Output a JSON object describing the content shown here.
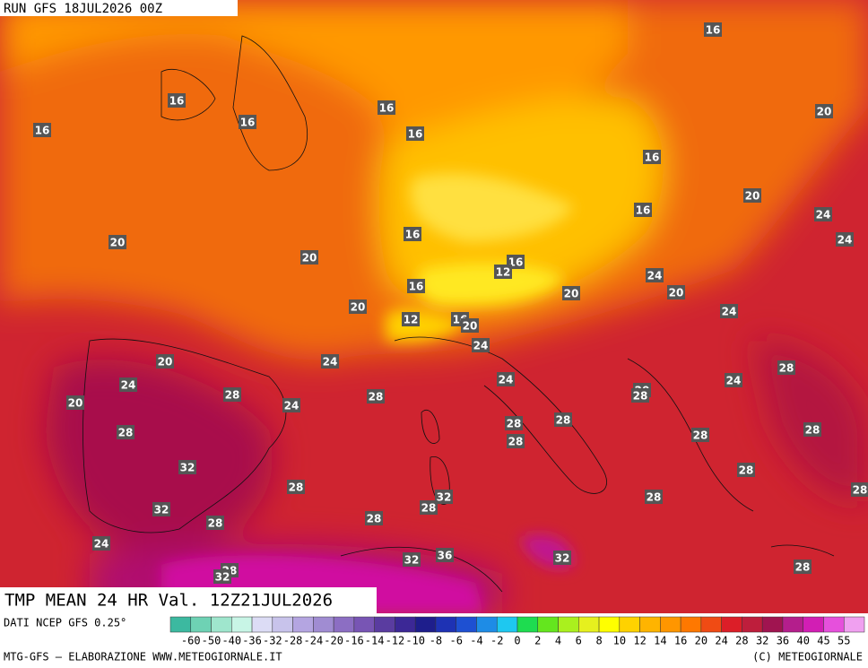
{
  "header": {
    "run": "RUN GFS 18JUL2026 00Z"
  },
  "footer": {
    "title": "TMP MEAN 24 HR Val. 12Z21JUL2026",
    "source": "DATI NCEP GFS 0.25°",
    "credit": "MTG-GFS – ELABORAZIONE WWW.METEOGIORNALE.IT",
    "copyright": "(C) METEOGIORNALE"
  },
  "contour_labels": [
    16,
    16,
    16,
    16,
    16,
    16,
    20,
    16,
    20,
    16,
    24,
    24,
    20,
    16,
    20,
    16,
    12,
    24,
    20,
    16,
    20,
    24,
    20,
    12,
    16,
    20,
    24,
    24,
    20,
    28,
    24,
    24,
    24,
    28,
    28,
    20,
    28,
    20,
    24,
    28,
    28,
    28,
    28,
    28,
    28,
    32,
    28,
    28,
    32,
    28,
    28,
    32,
    28,
    28,
    28,
    24,
    36,
    32,
    32,
    28,
    28,
    32
  ],
  "colorbar": {
    "labels": [
      "-60",
      "-50",
      "-40",
      "-36",
      "-32",
      "-28",
      "-24",
      "-20",
      "-16",
      "-14",
      "-12",
      "-10",
      "-8",
      "-6",
      "-4",
      "-2",
      "0",
      "2",
      "4",
      "6",
      "8",
      "10",
      "12",
      "14",
      "16",
      "20",
      "24",
      "28",
      "32",
      "36",
      "40",
      "45",
      "55"
    ],
    "colors": [
      "#3cb9a0",
      "#6ed2b4",
      "#9fe6cd",
      "#c8f5e6",
      "#dcdcf5",
      "#c8c3eb",
      "#b4a5e1",
      "#a08cd2",
      "#8c6ec3",
      "#7855b4",
      "#5a3ca0",
      "#3c2896",
      "#1e1e8c",
      "#1e32b4",
      "#1e50d2",
      "#1e8ce6",
      "#1ec8f0",
      "#1edc50",
      "#64e61e",
      "#aaf01e",
      "#e6f01e",
      "#ffff00",
      "#ffd200",
      "#ffb400",
      "#ff9600",
      "#ff7800",
      "#f04b14",
      "#dc1e28",
      "#be1e3c",
      "#a01450",
      "#b41e8c",
      "#d21eb4",
      "#e650dc",
      "#f0a0f0"
    ]
  }
}
